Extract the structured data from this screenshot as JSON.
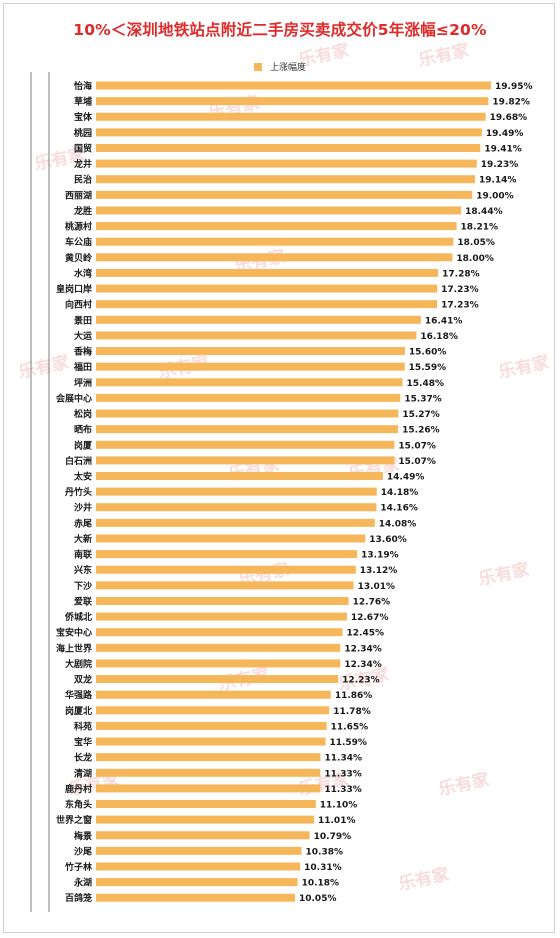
{
  "title": "10%＜深圳地铁站点附近二手房买卖成交价5年涨幅≤20%",
  "legend": {
    "label": "上涨幅度",
    "color": "#f5b75a"
  },
  "watermark": {
    "text": "乐有家"
  },
  "colors": {
    "bar": "#f5b75a",
    "title": "#e02a2a",
    "label": "#1a1a1a"
  },
  "chart_data": {
    "type": "bar",
    "orientation": "horizontal",
    "title": "10%＜深圳地铁站点附近二手房买卖成交价5年涨幅≤20%",
    "legend_position": "top-center",
    "grid": false,
    "series": [
      {
        "name": "上涨幅度",
        "unit": "%"
      }
    ],
    "categories": [
      "怡海",
      "草埔",
      "宝体",
      "桃园",
      "国贸",
      "龙井",
      "民治",
      "西丽湖",
      "龙胜",
      "桃源村",
      "车公庙",
      "黄贝岭",
      "水湾",
      "皇岗口岸",
      "向西村",
      "景田",
      "大运",
      "香梅",
      "福田",
      "坪洲",
      "会展中心",
      "松岗",
      "晒布",
      "岗厦",
      "白石洲",
      "太安",
      "丹竹头",
      "沙井",
      "赤尾",
      "大新",
      "南联",
      "兴东",
      "下沙",
      "爱联",
      "侨城北",
      "宝安中心",
      "海上世界",
      "大剧院",
      "双龙",
      "华强路",
      "岗厦北",
      "科苑",
      "宝华",
      "长龙",
      "清湖",
      "鹿丹村",
      "东角头",
      "世界之窗",
      "梅景",
      "沙尾",
      "竹子林",
      "永湖",
      "百鸽笼"
    ],
    "values": [
      19.95,
      19.82,
      19.68,
      19.49,
      19.41,
      19.23,
      19.14,
      19.0,
      18.44,
      18.21,
      18.05,
      18.0,
      17.28,
      17.23,
      17.23,
      16.41,
      16.18,
      15.6,
      15.59,
      15.48,
      15.37,
      15.27,
      15.26,
      15.07,
      15.07,
      14.49,
      14.18,
      14.16,
      14.08,
      13.6,
      13.19,
      13.12,
      13.01,
      12.76,
      12.67,
      12.45,
      12.34,
      12.34,
      12.23,
      11.86,
      11.78,
      11.65,
      11.59,
      11.34,
      11.33,
      11.33,
      11.1,
      11.01,
      10.79,
      10.38,
      10.31,
      10.18,
      10.05
    ],
    "value_labels": [
      "19.95%",
      "19.82%",
      "19.68%",
      "19.49%",
      "19.41%",
      "19.23%",
      "19.14%",
      "19.00%",
      "18.44%",
      "18.21%",
      "18.05%",
      "18.00%",
      "17.28%",
      "17.23%",
      "17.23%",
      "16.41%",
      "16.18%",
      "15.60%",
      "15.59%",
      "15.48%",
      "15.37%",
      "15.27%",
      "15.26%",
      "15.07%",
      "15.07%",
      "14.49%",
      "14.18%",
      "14.16%",
      "14.08%",
      "13.60%",
      "13.19%",
      "13.12%",
      "13.01%",
      "12.76%",
      "12.67%",
      "12.45%",
      "12.34%",
      "12.34%",
      "12.23%",
      "11.86%",
      "11.78%",
      "11.65%",
      "11.59%",
      "11.34%",
      "11.33%",
      "11.33%",
      "11.10%",
      "11.01%",
      "10.79%",
      "10.38%",
      "10.31%",
      "10.18%",
      "10.05%"
    ],
    "xlim": [
      0,
      20
    ]
  }
}
